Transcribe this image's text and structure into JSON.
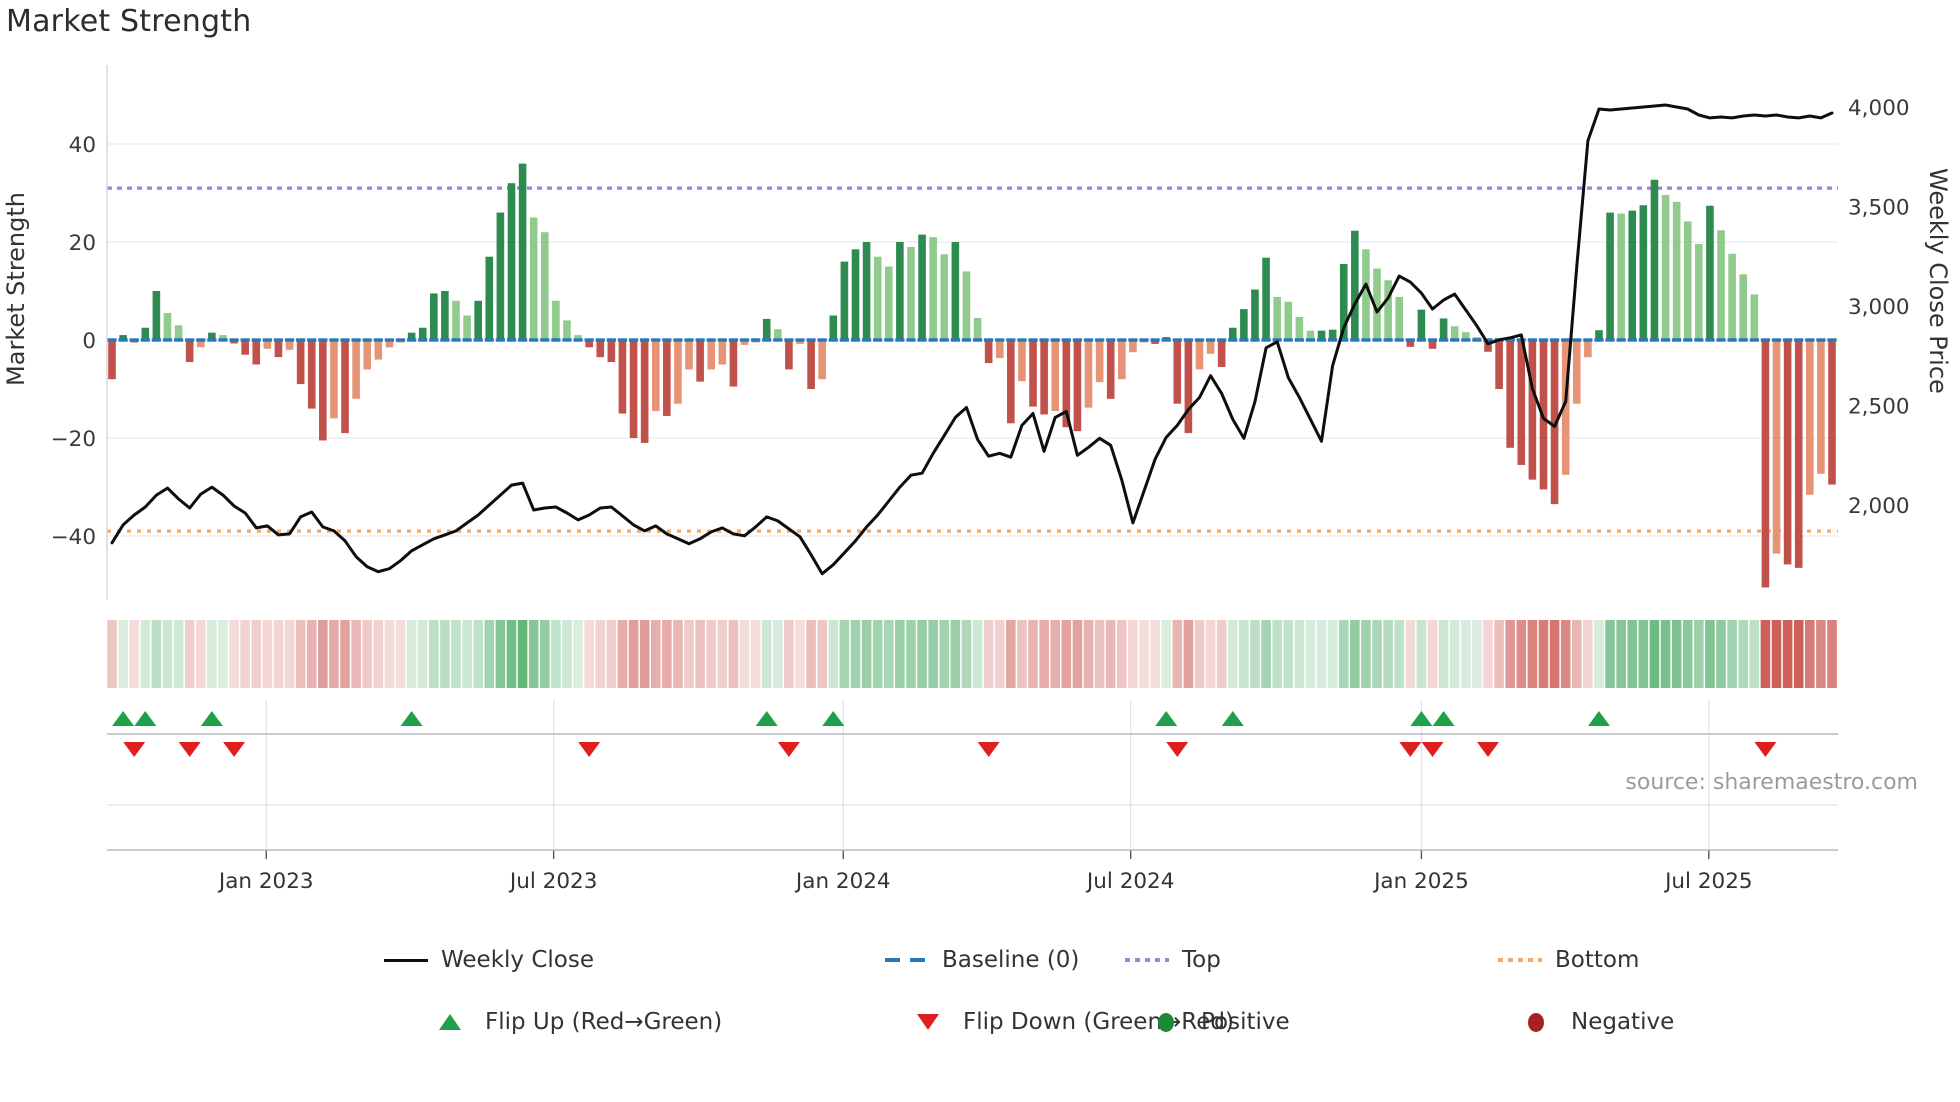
{
  "page": {
    "title": "Market Strength"
  },
  "source_note": "source: sharemaestro.com",
  "chart_data": {
    "type": "composite-bar-line",
    "title": "Market Strength",
    "frequency": "weekly",
    "start_date": "2022-10-03",
    "baseline": 0,
    "top_level": 31,
    "bottom_level": -39,
    "left_axis": {
      "label": "Market Strength",
      "ticks": [
        40,
        20,
        0,
        -20,
        -40
      ],
      "range": [
        -53,
        56
      ]
    },
    "right_axis": {
      "label": "Weekly Close Price",
      "tick_labels": [
        "4,000",
        "3,500",
        "3,000",
        "2,500",
        "2,000"
      ],
      "tick_values": [
        4000,
        3500,
        3000,
        2500,
        2000
      ]
    },
    "x_axis": {
      "tick_labels": [
        "Jan 2023",
        "Jul 2023",
        "Jan 2024",
        "Jul 2024",
        "Jan 2025",
        "Jul 2025"
      ],
      "tick_weeks": [
        13.9,
        39.8,
        65.9,
        91.8,
        118.0,
        143.9
      ]
    },
    "strength": [
      -8,
      1,
      -0.5,
      2.5,
      10,
      5.5,
      3,
      -4.5,
      -1.5,
      1.5,
      1,
      -0.7,
      -3,
      -5,
      -1.8,
      -3.5,
      -2,
      -9,
      -14,
      -20.5,
      -16,
      -19,
      -12,
      -6,
      -4,
      -1.5,
      -0.5,
      1.5,
      2.5,
      9.5,
      10,
      8,
      5,
      8,
      17,
      26,
      32,
      36,
      25,
      22,
      8,
      4,
      1,
      -1.5,
      -3.5,
      -4.5,
      -15,
      -20,
      -21,
      -14.5,
      -15.5,
      -13,
      -6,
      -8.5,
      -6,
      -5,
      -9.5,
      -1,
      -0.5,
      4.3,
      2.2,
      -6,
      -0.8,
      -10,
      -8,
      5,
      16,
      18.5,
      20,
      17,
      15,
      20,
      19,
      21.5,
      21,
      17.5,
      20,
      14,
      4.5,
      -4.7,
      -3.7,
      -17,
      -8.4,
      -13.6,
      -15.2,
      -14.5,
      -17.8,
      -18.6,
      -13.8,
      -8.6,
      -12,
      -8,
      -2.5,
      -0.5,
      -0.8,
      0.6,
      -13,
      -19,
      -6,
      -2.8,
      -5.5,
      2.5,
      6.3,
      10.3,
      16.8,
      8.8,
      7.8,
      4.7,
      1.9,
      1.9,
      2.1,
      15.5,
      22.3,
      18.5,
      14.6,
      12.2,
      8.8,
      -1.4,
      6.2,
      -1.8,
      4.4,
      2.8,
      1.6,
      0.6,
      -2.4,
      -10,
      -22,
      -25.5,
      -28.5,
      -30.5,
      -33.5,
      -27.5,
      -13,
      -3.5,
      2,
      26,
      25.8,
      26.4,
      27.5,
      32.7,
      29.6,
      28.2,
      24.2,
      19.6,
      27.4,
      22.4,
      17.6,
      13.4,
      9.3,
      -50.5,
      -43.6,
      -45.8,
      -46.5,
      -31.6,
      -27.3,
      -29.5
    ],
    "weekly_close": [
      1810,
      1900,
      1950,
      1990,
      2050,
      2085,
      2030,
      1985,
      2055,
      2090,
      2050,
      1995,
      1960,
      1885,
      1895,
      1850,
      1855,
      1940,
      1965,
      1890,
      1870,
      1820,
      1740,
      1690,
      1665,
      1680,
      1720,
      1770,
      1800,
      1830,
      1850,
      1870,
      1910,
      1950,
      2000,
      2050,
      2100,
      2110,
      1975,
      1985,
      1990,
      1960,
      1925,
      1950,
      1985,
      1990,
      1945,
      1900,
      1870,
      1895,
      1855,
      1830,
      1805,
      1830,
      1865,
      1885,
      1855,
      1845,
      1890,
      1940,
      1920,
      1880,
      1840,
      1750,
      1655,
      1700,
      1760,
      1820,
      1890,
      1950,
      2020,
      2090,
      2150,
      2160,
      2260,
      2350,
      2440,
      2490,
      2330,
      2245,
      2260,
      2240,
      2400,
      2460,
      2270,
      2440,
      2470,
      2250,
      2290,
      2335,
      2300,
      2125,
      1910,
      2070,
      2230,
      2340,
      2400,
      2480,
      2540,
      2650,
      2560,
      2430,
      2335,
      2520,
      2790,
      2820,
      2640,
      2540,
      2430,
      2320,
      2700,
      2890,
      3010,
      3110,
      2970,
      3040,
      3150,
      3120,
      3065,
      2985,
      3030,
      3060,
      2980,
      2900,
      2810,
      2830,
      2840,
      2855,
      2585,
      2435,
      2395,
      2520,
      3200,
      3830,
      3990,
      3985,
      3990,
      3995,
      4000,
      4005,
      4010,
      4000,
      3990,
      3960,
      3945,
      3950,
      3945,
      3955,
      3960,
      3955,
      3960,
      3950,
      3945,
      3955,
      3945,
      3970
    ],
    "flip_up_weeks": [
      1,
      3,
      9,
      27,
      59,
      65,
      95,
      101,
      118,
      120,
      134
    ],
    "flip_down_weeks": [
      2,
      7,
      11,
      43,
      61,
      79,
      96,
      117,
      119,
      124,
      149
    ],
    "legend": [
      {
        "label": "Weekly Close",
        "marker": "black-line"
      },
      {
        "label": "Baseline (0)",
        "marker": "blue-dashes"
      },
      {
        "label": "Top",
        "marker": "purple-dots"
      },
      {
        "label": "Bottom",
        "marker": "orange-dots"
      },
      {
        "label": "Flip Up (Red→Green)",
        "marker": "green-up-triangle"
      },
      {
        "label": "Flip Down (Green→Red)",
        "marker": "red-down-triangle"
      },
      {
        "label": "Positive",
        "marker": "green-dot"
      },
      {
        "label": "Negative",
        "marker": "dark-red-dot"
      }
    ],
    "colors": {
      "bar_positive_strong": "#2e8b50",
      "bar_positive_soft": "#90cb8d",
      "bar_negative_strong": "#c0514b",
      "bar_negative_soft": "#e69475",
      "price_line": "#0e0e0e",
      "baseline": "#2878b5",
      "top_line": "#a57fe0",
      "bottom_line": "#f2a96b",
      "flip_up": "#1fa148",
      "flip_down": "#df1f1f",
      "positive_dot": "#1c8a33",
      "negative_dot": "#a8201f",
      "heat_green": "34,150,66",
      "heat_red": "190,45,38"
    }
  }
}
